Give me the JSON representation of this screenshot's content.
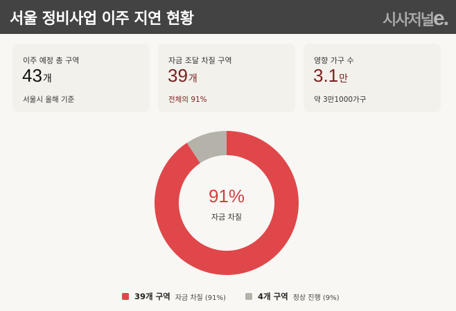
{
  "header": {
    "title": "서울 정비사업 이주 지연 현황",
    "logo_text": "시사저널",
    "logo_e": "e."
  },
  "cards": [
    {
      "label": "이주 예정 총 구역",
      "value": "43",
      "unit": "개",
      "sub": "서울시 올해 기준"
    },
    {
      "label": "자금 조달 차질 구역",
      "value": "39",
      "unit": "개",
      "sub": "전체의 91%"
    },
    {
      "label": "영향 가구 수",
      "value": "3.1",
      "unit": "만",
      "sub": "약 3만1000가구"
    }
  ],
  "donut": {
    "center_value": "91%",
    "center_label": "자금 차질"
  },
  "legend": [
    {
      "bold": "39개 구역",
      "desc": "자금 차질 (91%)",
      "color": "#e0474b"
    },
    {
      "bold": "4개 구역",
      "desc": "정상 진행 (9%)",
      "color": "#b5b2aa"
    }
  ],
  "colors": {
    "accent": "#e0474b",
    "muted": "#b5b2aa",
    "dark_red": "#7a1e1e",
    "header_bg": "#434343"
  },
  "chart_data": {
    "type": "pie",
    "title": "서울 정비사업 이주 지연 현황",
    "categories": [
      "자금 차질",
      "정상 진행"
    ],
    "values": [
      39,
      4
    ],
    "percentages": [
      91,
      9
    ],
    "colors": [
      "#e0474b",
      "#b5b2aa"
    ],
    "donut": true,
    "center_text": "91% 자금 차질",
    "legend_position": "bottom",
    "legend": [
      "39개 구역 자금 차질 (91%)",
      "4개 구역 정상 진행 (9%)"
    ]
  }
}
